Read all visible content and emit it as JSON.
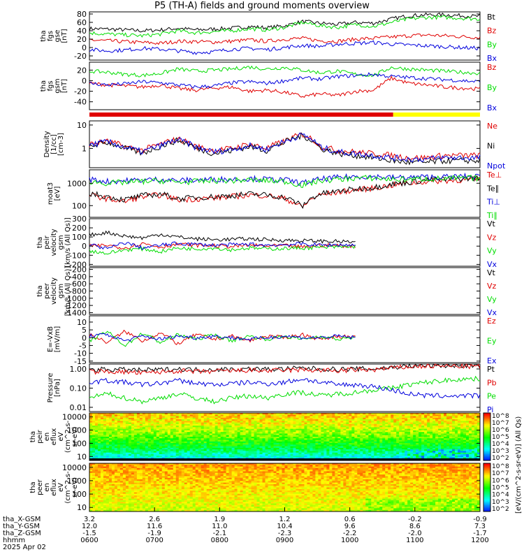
{
  "title": "P5 (TH-A) fields and ground moments overview",
  "colors": {
    "black": "#000000",
    "red": "#e00000",
    "green": "#00dd00",
    "blue": "#0000dd",
    "yellow": "#ffff00"
  },
  "chart_data": [
    {
      "type": "line",
      "panel": "fgs_gse",
      "ylabel": [
        "tha",
        "fgs",
        "gse",
        "[nT]"
      ],
      "yticks": [
        "80",
        "60",
        "40",
        "20",
        "0",
        "-20"
      ],
      "ylim": [
        -30,
        85
      ],
      "series": [
        {
          "name": "Bt",
          "color": "#000000",
          "values": [
            45,
            44,
            42,
            40,
            42,
            46,
            42,
            44,
            46,
            50,
            47,
            52,
            62,
            58,
            55,
            60,
            58,
            68,
            76,
            78,
            78,
            76,
            74
          ]
        },
        {
          "name": "Bz",
          "color": "#e00000",
          "values": [
            18,
            16,
            14,
            12,
            10,
            15,
            14,
            13,
            15,
            18,
            15,
            20,
            22,
            16,
            15,
            20,
            22,
            25,
            28,
            30,
            28,
            26,
            24
          ]
        },
        {
          "name": "By",
          "color": "#00dd00",
          "values": [
            35,
            32,
            30,
            28,
            32,
            40,
            35,
            38,
            40,
            45,
            42,
            48,
            60,
            52,
            48,
            55,
            50,
            60,
            68,
            72,
            72,
            70,
            68
          ]
        },
        {
          "name": "Bx",
          "color": "#0000dd",
          "values": [
            -5,
            -8,
            -6,
            -2,
            -4,
            -8,
            -12,
            -10,
            -4,
            -2,
            -5,
            0,
            5,
            3,
            8,
            10,
            12,
            8,
            6,
            4,
            2,
            0,
            -2
          ]
        }
      ]
    },
    {
      "type": "line",
      "panel": "fgs_gsm",
      "ylabel": [
        "tha",
        "fgs",
        "gsm",
        "[nT]"
      ],
      "yticks": [
        "20",
        "0",
        "-20",
        "-40"
      ],
      "ylim": [
        -55,
        35
      ],
      "series": [
        {
          "name": "Bz",
          "color": "#e00000",
          "values": [
            -5,
            -8,
            -10,
            -12,
            -8,
            -15,
            -18,
            -14,
            -12,
            -20,
            -18,
            -22,
            -30,
            -25,
            -28,
            -20,
            -18,
            5,
            -5,
            -8,
            -12,
            -14,
            -16
          ]
        },
        {
          "name": "By",
          "color": "#00dd00",
          "values": [
            18,
            16,
            12,
            10,
            14,
            22,
            18,
            20,
            22,
            26,
            22,
            25,
            20,
            15,
            18,
            12,
            10,
            25,
            22,
            20,
            18,
            16,
            14
          ]
        },
        {
          "name": "Bx",
          "color": "#0000dd",
          "values": [
            -5,
            -8,
            -6,
            -2,
            -4,
            -8,
            -12,
            -10,
            -4,
            -2,
            -5,
            0,
            5,
            3,
            8,
            10,
            12,
            8,
            6,
            4,
            2,
            0,
            -2
          ]
        }
      ]
    },
    {
      "type": "bar",
      "panel": "region_bar",
      "segments": [
        {
          "from": "0600",
          "to": "1040",
          "color": "#e00000"
        },
        {
          "from": "1040",
          "to": "1200",
          "color": "#ffff00"
        }
      ]
    },
    {
      "type": "line",
      "panel": "density",
      "yscale": "log",
      "ylabel": [
        "Density",
        "[1/cc]",
        "[cm-3]"
      ],
      "yticks": [
        "10",
        "1"
      ],
      "ylim": [
        0.15,
        15
      ],
      "series": [
        {
          "name": "Ne",
          "color": "#e00000",
          "values": [
            1.5,
            2,
            1.2,
            0.8,
            1.5,
            2.5,
            1.2,
            0.8,
            1.0,
            1.5,
            1.0,
            2.0,
            4.0,
            1.2,
            0.8,
            0.7,
            0.6,
            0.5,
            0.4,
            0.4,
            0.5,
            0.5,
            0.5
          ]
        },
        {
          "name": "Ni",
          "color": "#000000",
          "values": [
            1.2,
            1.8,
            1.0,
            0.6,
            1.2,
            2.2,
            1.0,
            0.6,
            0.8,
            1.2,
            0.8,
            1.8,
            3.5,
            1.0,
            0.6,
            0.5,
            0.4,
            0.3,
            0.25,
            0.25,
            0.3,
            0.3,
            0.3
          ]
        },
        {
          "name": "Npot",
          "color": "#0000dd",
          "values": [
            1.4,
            1.9,
            1.1,
            0.7,
            1.3,
            2.3,
            1.1,
            0.7,
            0.9,
            1.3,
            0.9,
            1.9,
            3.8,
            1.1,
            0.7,
            0.6,
            0.5,
            0.4,
            0.35,
            0.35,
            0.4,
            0.4,
            0.4
          ]
        }
      ]
    },
    {
      "type": "line",
      "panel": "temperature",
      "yscale": "log",
      "ylabel": [
        "moat3",
        "[eV]"
      ],
      "yticks": [
        "1000",
        "100"
      ],
      "ylim": [
        30,
        4000
      ],
      "series": [
        {
          "name": "Te⊥",
          "color": "#e00000",
          "values": [
            300,
            200,
            150,
            250,
            300,
            180,
            200,
            220,
            250,
            300,
            280,
            200,
            80,
            300,
            400,
            500,
            600,
            800,
            1000,
            1200,
            1300,
            1400,
            1500
          ]
        },
        {
          "name": "Te∥",
          "color": "#000000",
          "values": [
            350,
            250,
            180,
            280,
            330,
            200,
            230,
            250,
            280,
            330,
            300,
            230,
            90,
            330,
            430,
            550,
            650,
            900,
            1100,
            1400,
            1500,
            1600,
            1700
          ]
        },
        {
          "name": "Ti⊥",
          "color": "#0000dd",
          "values": [
            1500,
            1200,
            1300,
            1400,
            1500,
            1300,
            1400,
            1500,
            1500,
            1600,
            1500,
            1400,
            1000,
            1500,
            1800,
            2000,
            2000,
            1800,
            1800,
            1900,
            1900,
            2000,
            2000
          ]
        },
        {
          "name": "Ti∥",
          "color": "#00dd00",
          "values": [
            1200,
            1000,
            1100,
            1200,
            1300,
            1100,
            1200,
            1300,
            1300,
            1400,
            1300,
            1200,
            800,
            1300,
            1500,
            1700,
            1700,
            1500,
            1500,
            1600,
            1600,
            1700,
            1700
          ]
        }
      ]
    },
    {
      "type": "line",
      "panel": "peir_velocity",
      "ylabel": [
        "tha",
        "peir",
        "velocity",
        "gsm",
        "[km/s (All Qs)]"
      ],
      "yticks": [
        "300",
        "200",
        "100",
        "0",
        "-100",
        "-200"
      ],
      "ylim": [
        -220,
        300
      ],
      "series": [
        {
          "name": "Vt",
          "color": "#000000",
          "values": [
            120,
            150,
            110,
            90,
            130,
            100,
            80,
            70,
            75,
            80,
            70,
            65,
            60,
            55,
            50,
            45,
            null,
            null,
            null,
            null,
            null,
            null,
            null
          ]
        },
        {
          "name": "Vz",
          "color": "#e00000",
          "values": [
            0,
            10,
            -20,
            30,
            -10,
            20,
            10,
            5,
            -5,
            10,
            0,
            5,
            -10,
            10,
            5,
            0,
            null,
            null,
            null,
            null,
            null,
            null,
            null
          ]
        },
        {
          "name": "Vy",
          "color": "#00dd00",
          "values": [
            -50,
            -80,
            -40,
            -30,
            -60,
            -20,
            -30,
            -20,
            -40,
            -20,
            -30,
            -25,
            -20,
            -15,
            -10,
            -5,
            null,
            null,
            null,
            null,
            null,
            null,
            null
          ]
        },
        {
          "name": "Vx",
          "color": "#0000dd",
          "values": [
            20,
            -30,
            40,
            -20,
            10,
            30,
            20,
            10,
            15,
            20,
            10,
            15,
            25,
            10,
            15,
            10,
            null,
            null,
            null,
            null,
            null,
            null,
            null
          ]
        }
      ]
    },
    {
      "type": "line",
      "panel": "peer_velocity",
      "ylabel": [
        "tha",
        "peer",
        "velocity",
        "gsm",
        "[km/s (All Qs)]"
      ],
      "yticks": [
        "-200",
        "-400",
        "-600",
        "-800",
        "-1000",
        "-1200",
        "-1400"
      ],
      "ylim": [
        -1450,
        -150
      ],
      "series": [
        {
          "name": "Vt",
          "color": "#000000",
          "values": []
        },
        {
          "name": "Vz",
          "color": "#e00000",
          "values": []
        },
        {
          "name": "Vy",
          "color": "#00dd00",
          "values": []
        },
        {
          "name": "Vx",
          "color": "#0000dd",
          "values": []
        }
      ]
    },
    {
      "type": "line",
      "panel": "efield",
      "ylabel": [
        "E=-VxB",
        "[mV/m]"
      ],
      "yticks": [
        "10",
        "5",
        "0",
        "-5",
        "-10",
        "-15"
      ],
      "ylim": [
        -16,
        14
      ],
      "series": [
        {
          "name": "Ez",
          "color": "#e00000",
          "values": [
            2,
            -3,
            4,
            -2,
            3,
            -4,
            2,
            -1,
            1,
            -2,
            1,
            0,
            2,
            -1,
            1,
            0,
            null,
            null,
            null,
            null,
            null,
            null,
            null
          ]
        },
        {
          "name": "Ey",
          "color": "#00dd00",
          "values": [
            -2,
            4,
            -5,
            3,
            -3,
            2,
            -1,
            2,
            -2,
            1,
            -1,
            1,
            -1,
            1,
            -1,
            0,
            null,
            null,
            null,
            null,
            null,
            null,
            null
          ]
        },
        {
          "name": "Ex",
          "color": "#0000dd",
          "values": [
            1,
            2,
            -2,
            1,
            -1,
            1,
            0,
            1,
            0,
            -1,
            0,
            1,
            0,
            0,
            1,
            0,
            null,
            null,
            null,
            null,
            null,
            null,
            null
          ]
        }
      ]
    },
    {
      "type": "line",
      "panel": "pressure",
      "yscale": "log",
      "ylabel": [
        "Pressure",
        "[nPa]"
      ],
      "yticks": [
        "1.00",
        "0.10",
        "0.01"
      ],
      "ylim": [
        0.006,
        1.8
      ],
      "series": [
        {
          "name": "Pt",
          "color": "#000000",
          "values": [
            0.9,
            0.95,
            0.9,
            0.85,
            0.9,
            1.0,
            0.9,
            0.95,
            0.95,
            1.0,
            0.95,
            1.0,
            1.1,
            1.0,
            0.95,
            1.0,
            1.0,
            1.2,
            1.4,
            1.5,
            1.5,
            1.5,
            1.4
          ]
        },
        {
          "name": "Pb",
          "color": "#e00000",
          "values": [
            0.7,
            0.75,
            0.7,
            0.6,
            0.7,
            0.8,
            0.7,
            0.75,
            0.8,
            0.85,
            0.8,
            0.85,
            0.9,
            0.85,
            0.8,
            0.9,
            0.9,
            1.1,
            1.3,
            1.4,
            1.4,
            1.4,
            1.3
          ]
        },
        {
          "name": "Pe",
          "color": "#00dd00",
          "values": [
            0.03,
            0.05,
            0.03,
            0.02,
            0.03,
            0.05,
            0.03,
            0.02,
            0.03,
            0.04,
            0.03,
            0.05,
            0.06,
            0.04,
            0.05,
            0.06,
            0.08,
            0.1,
            0.15,
            0.2,
            0.25,
            0.3,
            0.3
          ]
        },
        {
          "name": "Pi",
          "color": "#0000dd",
          "values": [
            0.2,
            0.25,
            0.2,
            0.15,
            0.18,
            0.25,
            0.18,
            0.15,
            0.17,
            0.2,
            0.17,
            0.2,
            0.3,
            0.2,
            0.15,
            0.15,
            0.12,
            0.08,
            0.05,
            0.04,
            0.04,
            0.04,
            0.04
          ]
        }
      ]
    },
    {
      "type": "heatmap",
      "panel": "peir_spectrogram",
      "yscale": "log",
      "ylabel": [
        "tha",
        "peir",
        "en",
        "eflux",
        "eV",
        "(cm^2-s-",
        "sr-eV)"
      ],
      "yticks": [
        "10000",
        "1000",
        "100",
        "10"
      ],
      "ylim": [
        5,
        20000
      ],
      "colorbar": {
        "label": "[eV/(cm^2-s-sr-eV)] (All Qs)",
        "ticks": [
          "10^8",
          "10^7",
          "10^6",
          "10^5",
          "10^4",
          "10^3",
          "10^2"
        ]
      }
    },
    {
      "type": "heatmap",
      "panel": "peer_spectrogram",
      "yscale": "log",
      "ylabel": [
        "tha",
        "peer",
        "en",
        "eflux",
        "eV",
        "(cm^2-s-",
        "sr-eV)"
      ],
      "yticks": [
        "10000",
        "1000",
        "100",
        "10"
      ],
      "ylim": [
        5,
        20000
      ],
      "colorbar": {
        "label": "[eV/(cm^2-s-sr-eV)] (All Qs)",
        "ticks": [
          "10^8",
          "10^7",
          "10^6",
          "10^5",
          "10^4",
          "10^3",
          "10^2"
        ]
      }
    }
  ],
  "x_axis": {
    "rows": [
      {
        "label": "tha_X-GSM",
        "values": [
          "3.2",
          "2.6",
          "1.9",
          "1.2",
          "0.6",
          "-0.2",
          "-0.9"
        ]
      },
      {
        "label": "tha_Y-GSM",
        "values": [
          "12.0",
          "11.6",
          "11.0",
          "10.4",
          "9.6",
          "8.6",
          "7.3"
        ]
      },
      {
        "label": "tha_Z-GSM",
        "values": [
          "-1.5",
          "-1.9",
          "-2.1",
          "-2.3",
          "-2.2",
          "-2.0",
          "-1.7"
        ]
      },
      {
        "label": "hhmm",
        "values": [
          "0600",
          "0700",
          "0800",
          "0900",
          "1000",
          "1100",
          "1200"
        ]
      }
    ],
    "date": "2025 Apr 02"
  }
}
